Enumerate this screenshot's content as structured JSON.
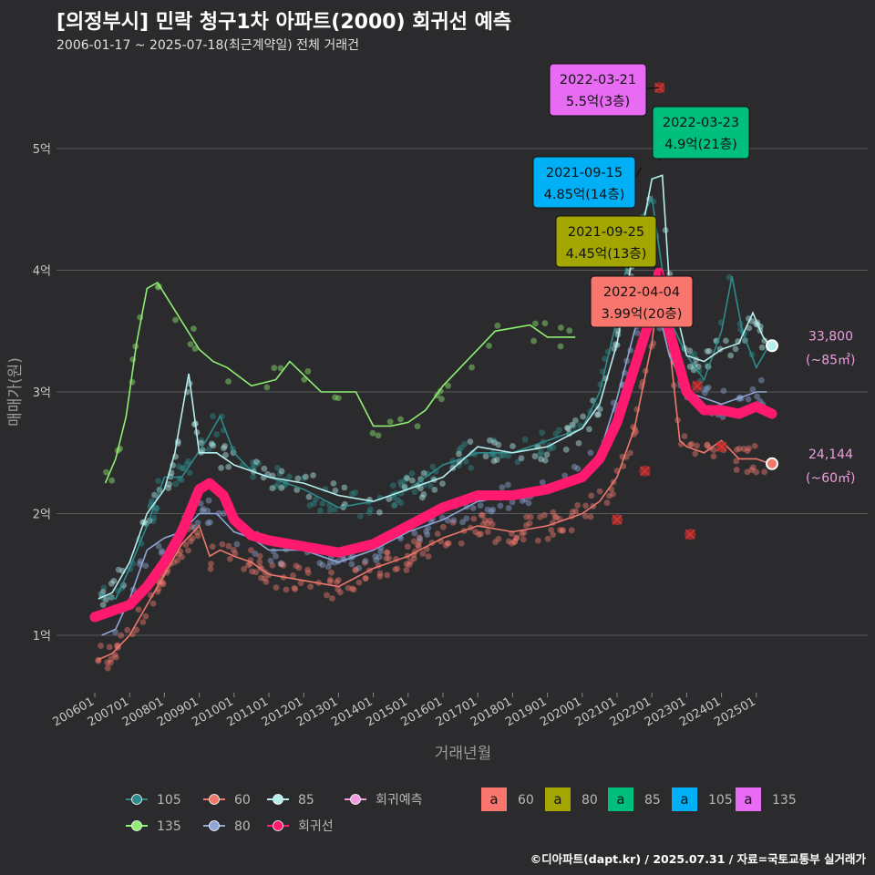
{
  "title": "[의정부시] 민락 청구1차 아파트(2000) 회귀선 예측",
  "subtitle": "2006-01-17 ~ 2025-07-18(최근계약일) 전체 거래건",
  "caption": "©디아파트(dapt.kr) / 2025.07.31 / 자료=국토교통부 실거래가",
  "colors": {
    "background": "#2b2b2d",
    "grid": "#5a5a5a",
    "s105": "#2e8b8b",
    "s60": "#f0776c",
    "s85": "#b5eeee",
    "s135": "#90ee70",
    "s80": "#8fa6d6",
    "regression": "#ff1a70",
    "forecast": "#ee9ee0",
    "label60": "#f8766d",
    "label80": "#a3a500",
    "label85": "#00bf7d",
    "label105": "#00b0f6",
    "label135": "#e76bf3"
  },
  "chart_data": {
    "type": "line",
    "xlabel": "거래년월",
    "ylabel": "매매가(원)",
    "x_ticks": [
      "200601",
      "200701",
      "200801",
      "200901",
      "201001",
      "201101",
      "201201",
      "201301",
      "201401",
      "201501",
      "201601",
      "201701",
      "201801",
      "201901",
      "202001",
      "202101",
      "202201",
      "202301",
      "202401",
      "202501"
    ],
    "y_ticks": [
      {
        "value": 1,
        "label": "1억"
      },
      {
        "value": 2,
        "label": "2억"
      },
      {
        "value": 3,
        "label": "3억"
      },
      {
        "value": 4,
        "label": "4억"
      },
      {
        "value": 5,
        "label": "5억"
      }
    ],
    "xlim": [
      2006.0,
      2026.0
    ],
    "ylim": [
      0.5,
      5.75
    ],
    "y_unit": "억",
    "grid": true,
    "legend_position": "bottom",
    "series": [
      {
        "name": "105",
        "kind": "line",
        "color": "#2e8b8b",
        "points": [
          [
            2006.1,
            1.35
          ],
          [
            2006.6,
            1.3
          ],
          [
            2007.0,
            1.55
          ],
          [
            2007.5,
            1.9
          ],
          [
            2008.0,
            2.3
          ],
          [
            2008.5,
            2.3
          ],
          [
            2009.2,
            2.6
          ],
          [
            2009.6,
            2.8
          ],
          [
            2010.0,
            2.5
          ],
          [
            2010.5,
            2.35
          ],
          [
            2011.0,
            2.3
          ],
          [
            2012.0,
            2.2
          ],
          [
            2013.0,
            2.05
          ],
          [
            2014.0,
            2.1
          ],
          [
            2015.0,
            2.2
          ],
          [
            2016.0,
            2.4
          ],
          [
            2017.0,
            2.5
          ],
          [
            2018.0,
            2.5
          ],
          [
            2019.0,
            2.6
          ],
          [
            2020.0,
            2.7
          ],
          [
            2020.5,
            3.0
          ],
          [
            2021.0,
            3.6
          ],
          [
            2021.5,
            4.4
          ],
          [
            2021.75,
            4.45
          ],
          [
            2022.0,
            4.6
          ],
          [
            2022.5,
            3.6
          ],
          [
            2023.0,
            3.3
          ],
          [
            2023.5,
            3.1
          ],
          [
            2024.0,
            3.5
          ],
          [
            2024.3,
            3.95
          ],
          [
            2024.6,
            3.5
          ],
          [
            2025.0,
            3.2
          ],
          [
            2025.4,
            3.4
          ]
        ]
      },
      {
        "name": "60",
        "kind": "line",
        "color": "#f0776c",
        "points": [
          [
            2006.1,
            0.8
          ],
          [
            2006.5,
            0.85
          ],
          [
            2007.0,
            1.0
          ],
          [
            2007.5,
            1.25
          ],
          [
            2008.0,
            1.5
          ],
          [
            2008.5,
            1.75
          ],
          [
            2009.0,
            1.9
          ],
          [
            2009.3,
            1.65
          ],
          [
            2009.6,
            1.7
          ],
          [
            2010.0,
            1.65
          ],
          [
            2010.5,
            1.6
          ],
          [
            2011.0,
            1.5
          ],
          [
            2012.0,
            1.45
          ],
          [
            2013.0,
            1.4
          ],
          [
            2014.0,
            1.55
          ],
          [
            2015.0,
            1.65
          ],
          [
            2016.0,
            1.8
          ],
          [
            2017.0,
            1.9
          ],
          [
            2018.0,
            1.85
          ],
          [
            2019.0,
            1.9
          ],
          [
            2020.0,
            2.0
          ],
          [
            2020.5,
            2.1
          ],
          [
            2021.0,
            2.3
          ],
          [
            2021.5,
            2.7
          ],
          [
            2022.0,
            3.4
          ],
          [
            2022.25,
            3.99
          ],
          [
            2022.5,
            3.4
          ],
          [
            2022.8,
            2.6
          ],
          [
            2023.0,
            2.55
          ],
          [
            2023.5,
            2.5
          ],
          [
            2024.0,
            2.6
          ],
          [
            2024.5,
            2.45
          ],
          [
            2025.0,
            2.45
          ],
          [
            2025.4,
            2.41
          ]
        ]
      },
      {
        "name": "85",
        "kind": "line",
        "color": "#b5eeee",
        "points": [
          [
            2006.1,
            1.3
          ],
          [
            2006.5,
            1.35
          ],
          [
            2007.0,
            1.6
          ],
          [
            2007.5,
            2.0
          ],
          [
            2008.0,
            2.2
          ],
          [
            2008.3,
            2.5
          ],
          [
            2008.7,
            3.15
          ],
          [
            2009.0,
            2.5
          ],
          [
            2009.5,
            2.5
          ],
          [
            2010.0,
            2.4
          ],
          [
            2010.5,
            2.35
          ],
          [
            2011.0,
            2.3
          ],
          [
            2012.0,
            2.25
          ],
          [
            2013.0,
            2.15
          ],
          [
            2014.0,
            2.1
          ],
          [
            2015.0,
            2.2
          ],
          [
            2016.0,
            2.3
          ],
          [
            2017.0,
            2.55
          ],
          [
            2018.0,
            2.5
          ],
          [
            2019.0,
            2.55
          ],
          [
            2020.0,
            2.7
          ],
          [
            2020.5,
            2.9
          ],
          [
            2021.0,
            3.4
          ],
          [
            2021.5,
            4.2
          ],
          [
            2021.8,
            4.45
          ],
          [
            2022.0,
            4.75
          ],
          [
            2022.3,
            4.78
          ],
          [
            2022.5,
            3.9
          ],
          [
            2023.0,
            3.3
          ],
          [
            2023.5,
            3.25
          ],
          [
            2024.0,
            3.35
          ],
          [
            2024.5,
            3.4
          ],
          [
            2024.9,
            3.65
          ],
          [
            2025.2,
            3.45
          ],
          [
            2025.4,
            3.38
          ]
        ]
      },
      {
        "name": "135",
        "kind": "line",
        "color": "#90ee70",
        "points": [
          [
            2006.3,
            2.25
          ],
          [
            2006.6,
            2.45
          ],
          [
            2006.9,
            2.8
          ],
          [
            2007.2,
            3.4
          ],
          [
            2007.5,
            3.85
          ],
          [
            2007.8,
            3.9
          ],
          [
            2009.0,
            3.35
          ],
          [
            2009.4,
            3.25
          ],
          [
            2009.8,
            3.2
          ],
          [
            2010.5,
            3.05
          ],
          [
            2011.2,
            3.1
          ],
          [
            2011.6,
            3.25
          ],
          [
            2012.5,
            3.0
          ],
          [
            2013.5,
            3.0
          ],
          [
            2014.0,
            2.72
          ],
          [
            2014.5,
            2.72
          ],
          [
            2015.0,
            2.75
          ],
          [
            2015.5,
            2.85
          ],
          [
            2016.0,
            3.05
          ],
          [
            2016.5,
            3.2
          ],
          [
            2017.0,
            3.35
          ],
          [
            2017.5,
            3.5
          ],
          [
            2018.5,
            3.55
          ],
          [
            2019.0,
            3.45
          ],
          [
            2019.8,
            3.45
          ]
        ]
      },
      {
        "name": "80",
        "kind": "line",
        "color": "#8fa6d6",
        "points": [
          [
            2006.2,
            1.0
          ],
          [
            2006.6,
            1.05
          ],
          [
            2007.0,
            1.3
          ],
          [
            2007.5,
            1.7
          ],
          [
            2008.0,
            1.8
          ],
          [
            2008.5,
            1.85
          ],
          [
            2009.0,
            2.0
          ],
          [
            2009.5,
            2.0
          ],
          [
            2010.0,
            1.85
          ],
          [
            2010.5,
            1.8
          ],
          [
            2011.0,
            1.7
          ],
          [
            2012.0,
            1.7
          ],
          [
            2013.0,
            1.6
          ],
          [
            2014.0,
            1.7
          ],
          [
            2015.0,
            1.85
          ],
          [
            2016.0,
            1.95
          ],
          [
            2017.0,
            2.1
          ],
          [
            2018.0,
            2.15
          ],
          [
            2019.0,
            2.2
          ],
          [
            2020.0,
            2.3
          ],
          [
            2020.5,
            2.5
          ],
          [
            2021.0,
            2.95
          ],
          [
            2021.5,
            3.5
          ],
          [
            2022.0,
            3.9
          ],
          [
            2022.5,
            3.3
          ],
          [
            2023.0,
            3.0
          ],
          [
            2023.5,
            2.95
          ],
          [
            2024.0,
            2.9
          ],
          [
            2024.5,
            2.95
          ],
          [
            2025.0,
            3.0
          ],
          [
            2025.3,
            3.0
          ]
        ]
      },
      {
        "name": "회귀선",
        "kind": "regression",
        "color": "#ff1a70",
        "points": [
          [
            2006.0,
            1.15
          ],
          [
            2006.5,
            1.2
          ],
          [
            2007.0,
            1.25
          ],
          [
            2007.5,
            1.4
          ],
          [
            2008.0,
            1.6
          ],
          [
            2008.5,
            1.85
          ],
          [
            2009.0,
            2.2
          ],
          [
            2009.3,
            2.25
          ],
          [
            2009.7,
            2.15
          ],
          [
            2010.0,
            1.95
          ],
          [
            2010.5,
            1.82
          ],
          [
            2011.0,
            1.78
          ],
          [
            2012.0,
            1.73
          ],
          [
            2013.0,
            1.68
          ],
          [
            2014.0,
            1.75
          ],
          [
            2015.0,
            1.9
          ],
          [
            2016.0,
            2.05
          ],
          [
            2017.0,
            2.15
          ],
          [
            2018.0,
            2.15
          ],
          [
            2019.0,
            2.2
          ],
          [
            2020.0,
            2.3
          ],
          [
            2020.5,
            2.45
          ],
          [
            2021.0,
            2.75
          ],
          [
            2021.5,
            3.2
          ],
          [
            2022.0,
            3.65
          ],
          [
            2022.2,
            3.98
          ],
          [
            2022.5,
            3.5
          ],
          [
            2022.8,
            3.2
          ],
          [
            2023.0,
            3.0
          ],
          [
            2023.5,
            2.85
          ],
          [
            2024.0,
            2.85
          ],
          [
            2024.5,
            2.82
          ],
          [
            2025.0,
            2.88
          ],
          [
            2025.45,
            2.82
          ]
        ]
      }
    ],
    "forecast_points": [
      {
        "name": "회귀예측",
        "x": 2025.45,
        "y": 3.38,
        "color": "#b5eeee",
        "label": "33,800",
        "sublabel": "(~85㎡)"
      },
      {
        "name": "회귀예측",
        "x": 2025.45,
        "y": 2.41,
        "color": "#f0776c",
        "label": "24,144",
        "sublabel": "(~60㎡)"
      }
    ],
    "max_marks": [
      {
        "x": 2022.22,
        "y": 5.5,
        "color": "#f0776c"
      },
      {
        "x": 2021.8,
        "y": 2.35,
        "color": "#f0776c"
      },
      {
        "x": 2021.0,
        "y": 1.95,
        "color": "#f0776c"
      },
      {
        "x": 2023.1,
        "y": 1.83,
        "color": "#f0776c"
      },
      {
        "x": 2023.3,
        "y": 3.05,
        "color": "#f0776c"
      },
      {
        "x": 2024.0,
        "y": 2.55,
        "color": "#f0776c"
      }
    ],
    "annotations": [
      {
        "date": "2022-03-21",
        "price": "5.5억(3층)",
        "color": "#e76bf3",
        "x": 2022.22,
        "y": 5.5
      },
      {
        "date": "2022-03-23",
        "price": "4.9억(21층)",
        "color": "#00bf7d",
        "x": 2022.23,
        "y": 4.9
      },
      {
        "date": "2021-09-15",
        "price": "4.85억(14층)",
        "color": "#00b0f6",
        "x": 2021.71,
        "y": 4.85
      },
      {
        "date": "2021-09-25",
        "price": "4.45억(13층)",
        "color": "#a3a500",
        "x": 2021.73,
        "y": 4.45
      },
      {
        "date": "2022-04-04",
        "price": "3.99억(20층)",
        "color": "#f8766d",
        "x": 2022.26,
        "y": 3.99
      }
    ]
  },
  "legend": {
    "series": [
      {
        "name": "105",
        "color": "#2e8b8b"
      },
      {
        "name": "60",
        "color": "#f0776c"
      },
      {
        "name": "85",
        "color": "#b5eeee"
      },
      {
        "name": "회귀예측",
        "color": "#ee9ee0"
      },
      {
        "name": "135",
        "color": "#90ee70"
      },
      {
        "name": "80",
        "color": "#8fa6d6"
      },
      {
        "name": "회귀선",
        "color": "#ff1a70"
      }
    ],
    "label_glyph": "a",
    "label_keys": [
      {
        "name": "60",
        "color": "#f8766d"
      },
      {
        "name": "80",
        "color": "#a3a500"
      },
      {
        "name": "85",
        "color": "#00bf7d"
      },
      {
        "name": "105",
        "color": "#00b0f6"
      },
      {
        "name": "135",
        "color": "#e76bf3"
      }
    ]
  }
}
